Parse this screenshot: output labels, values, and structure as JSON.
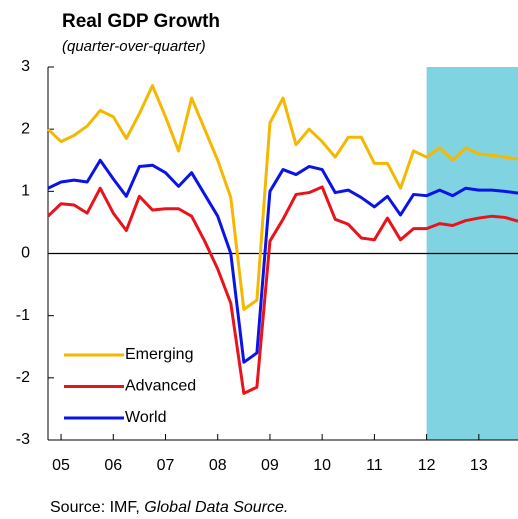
{
  "chart_data": {
    "type": "line",
    "title": "Real GDP Growth",
    "subtitle": "(quarter-over-quarter)",
    "source": {
      "prefix": "Source: IMF,",
      "italic": "Global Data Source."
    },
    "x": [
      2004.75,
      2005,
      2005.25,
      2005.5,
      2005.75,
      2006,
      2006.25,
      2006.5,
      2006.75,
      2007,
      2007.25,
      2007.5,
      2007.75,
      2008,
      2008.25,
      2008.5,
      2008.75,
      2009,
      2009.25,
      2009.5,
      2009.75,
      2010,
      2010.25,
      2010.5,
      2010.75,
      2011,
      2011.25,
      2011.5,
      2011.75,
      2012,
      2012.25,
      2012.5,
      2012.75,
      2013,
      2013.25,
      2013.5,
      2013.75
    ],
    "series": [
      {
        "name": "Emerging",
        "color": "#f5b800",
        "values": [
          2.0,
          1.8,
          1.9,
          2.05,
          2.3,
          2.2,
          1.85,
          2.25,
          2.7,
          2.2,
          1.65,
          2.5,
          2.0,
          1.5,
          0.9,
          -0.9,
          -0.75,
          2.1,
          2.5,
          1.75,
          2.0,
          1.8,
          1.55,
          1.87,
          1.87,
          1.45,
          1.45,
          1.05,
          1.65,
          1.55,
          1.7,
          1.5,
          1.7,
          1.6,
          1.58,
          1.55,
          1.52
        ]
      },
      {
        "name": "Advanced",
        "color": "#e8141b",
        "values": [
          0.6,
          0.8,
          0.78,
          0.65,
          1.05,
          0.65,
          0.37,
          0.92,
          0.7,
          0.72,
          0.72,
          0.6,
          0.2,
          -0.25,
          -0.8,
          -2.25,
          -2.15,
          0.2,
          0.55,
          0.95,
          0.98,
          1.07,
          0.55,
          0.47,
          0.25,
          0.22,
          0.57,
          0.22,
          0.4,
          0.4,
          0.48,
          0.45,
          0.53,
          0.57,
          0.6,
          0.58,
          0.52
        ]
      },
      {
        "name": "World",
        "color": "#0a14e6",
        "values": [
          1.05,
          1.15,
          1.18,
          1.15,
          1.5,
          1.2,
          0.92,
          1.4,
          1.42,
          1.3,
          1.08,
          1.3,
          0.95,
          0.6,
          0.0,
          -1.75,
          -1.6,
          1.0,
          1.35,
          1.27,
          1.4,
          1.35,
          0.98,
          1.02,
          0.9,
          0.75,
          0.92,
          0.62,
          0.95,
          0.93,
          1.02,
          0.93,
          1.05,
          1.02,
          1.02,
          1.0,
          0.97
        ]
      }
    ],
    "shaded_region": {
      "x": [
        2012,
        2013.75
      ],
      "color": "#80d4e2"
    },
    "xlim": [
      2004.75,
      2013.75
    ],
    "xticks": [
      {
        "value": 2005,
        "label": "05"
      },
      {
        "value": 2006,
        "label": "06"
      },
      {
        "value": 2007,
        "label": "07"
      },
      {
        "value": 2008,
        "label": "08"
      },
      {
        "value": 2009,
        "label": "09"
      },
      {
        "value": 2010,
        "label": "10"
      },
      {
        "value": 2011,
        "label": "11"
      },
      {
        "value": 2012,
        "label": "12"
      },
      {
        "value": 2013,
        "label": "13"
      }
    ],
    "ylim": [
      -3,
      3
    ],
    "yticks": [
      -3,
      -2,
      -1,
      0,
      1,
      2,
      3
    ],
    "legend": "lower left"
  }
}
